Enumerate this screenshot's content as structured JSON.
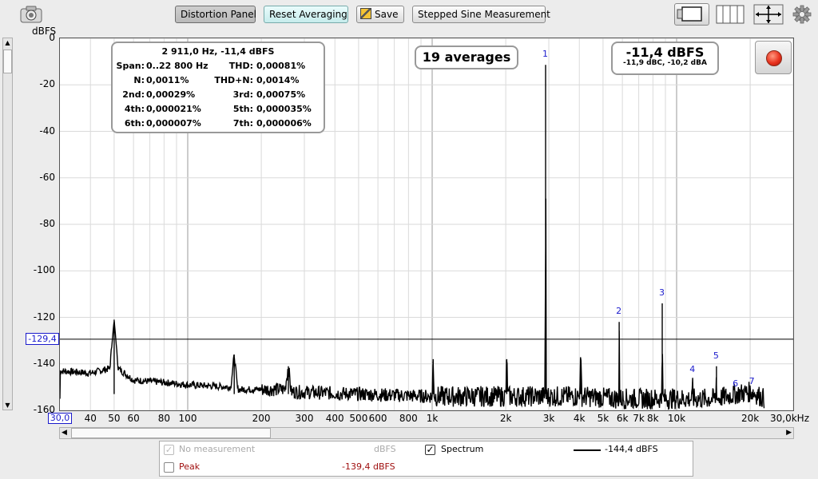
{
  "toolbar": {
    "distortion_panel": "Distortion Panel",
    "reset_averaging": "Reset Averaging",
    "save": "Save",
    "stepped_sine": "Stepped Sine Measurement"
  },
  "y_axis": {
    "unit": "dBFS",
    "ticks": [
      "0",
      "-20",
      "-40",
      "-60",
      "-80",
      "-100",
      "-120",
      "-140",
      "-160"
    ]
  },
  "x_axis": {
    "start_label": "30,0",
    "end_label": "30,0kHz",
    "ticks": [
      "40",
      "50",
      "60",
      "80",
      "100",
      "200",
      "300",
      "400",
      "500",
      "600",
      "800",
      "1k",
      "2k",
      "3k",
      "4k",
      "5k",
      "6k",
      "7k",
      "8k",
      "10k",
      "20k"
    ]
  },
  "cursor_level": "-129,4",
  "stats": {
    "header": "2 911,0 Hz, -11,4 dBFS",
    "span_label": "Span:",
    "span_value": "0..22 800 Hz",
    "thd_label": "THD:",
    "thd_value": "0,00081%",
    "n_label": "N:",
    "n_value": "0,0011%",
    "thdn_label": "THD+N:",
    "thdn_value": "0,0014%",
    "h2_label": "2nd:",
    "h2_value": "0,00029%",
    "h3_label": "3rd:",
    "h3_value": "0,00075%",
    "h4_label": "4th:",
    "h4_value": "0,000021%",
    "h5_label": "5th:",
    "h5_value": "0,000035%",
    "h6_label": "6th:",
    "h6_value": "0,000007%",
    "h7_label": "7th:",
    "h7_value": "0,000006%"
  },
  "averages": "19 averages",
  "level": {
    "main": "-11,4 dBFS",
    "sub": "-11,9 dBC, -10,2 dBA"
  },
  "harmonic_markers": [
    "1",
    "2",
    "3",
    "4",
    "5",
    "6",
    "7"
  ],
  "legend": {
    "no_measurement": "No measurement",
    "no_measurement_unit": "dBFS",
    "spectrum": "Spectrum",
    "spectrum_value": "-144,4 dBFS",
    "peak": "Peak",
    "peak_value": "-139,4 dBFS"
  },
  "colors": {
    "marker": "#1a1acc",
    "peak": "#a01010",
    "record": "#e8321e"
  },
  "chart_data": {
    "type": "line",
    "x_scale": "log",
    "xlim": [
      30,
      30000
    ],
    "ylim": [
      -160,
      0
    ],
    "ylabel": "dBFS",
    "series": [
      {
        "name": "Spectrum",
        "points": [
          [
            30,
            -143
          ],
          [
            40,
            -144
          ],
          [
            48,
            -142
          ],
          [
            50,
            -121
          ],
          [
            52,
            -142
          ],
          [
            60,
            -147
          ],
          [
            80,
            -148
          ],
          [
            100,
            -149
          ],
          [
            150,
            -150
          ],
          [
            155,
            -136
          ],
          [
            160,
            -151
          ],
          [
            250,
            -151
          ],
          [
            258,
            -141
          ],
          [
            265,
            -152
          ],
          [
            500,
            -153
          ],
          [
            1000,
            -154
          ],
          [
            1010,
            -138
          ],
          [
            1020,
            -154
          ],
          [
            2000,
            -154
          ],
          [
            2020,
            -138
          ],
          [
            2040,
            -154
          ],
          [
            2900,
            -154
          ],
          [
            2911,
            -11.4
          ],
          [
            2925,
            -154
          ],
          [
            4000,
            -154
          ],
          [
            4050,
            -138
          ],
          [
            4100,
            -154
          ],
          [
            5800,
            -155
          ],
          [
            5822,
            -122
          ],
          [
            5850,
            -155
          ],
          [
            8700,
            -155
          ],
          [
            8733,
            -114
          ],
          [
            8770,
            -155
          ],
          [
            11600,
            -155
          ],
          [
            11644,
            -147
          ],
          [
            11700,
            -155
          ],
          [
            14500,
            -155
          ],
          [
            14555,
            -141
          ],
          [
            14620,
            -155
          ],
          [
            17470,
            -153
          ],
          [
            20380,
            -152
          ],
          [
            22800,
            -155
          ]
        ]
      }
    ],
    "harmonic_markers": [
      {
        "label": "1",
        "x": 2911,
        "y": -11.4
      },
      {
        "label": "2",
        "x": 5822,
        "y": -122
      },
      {
        "label": "3",
        "x": 8733,
        "y": -114
      },
      {
        "label": "4",
        "x": 11644,
        "y": -147
      },
      {
        "label": "5",
        "x": 14555,
        "y": -141
      },
      {
        "label": "6",
        "x": 17466,
        "y": -153
      },
      {
        "label": "7",
        "x": 20377,
        "y": -152
      }
    ],
    "cursor_y": -129.4
  }
}
